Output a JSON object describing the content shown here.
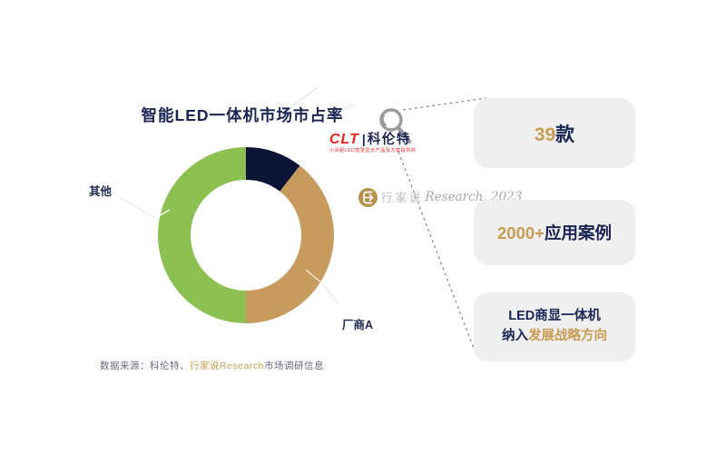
{
  "chart_data": {
    "type": "pie",
    "subtype": "donut",
    "title": "智能LED一体机市场市占率",
    "legend": "none",
    "labels_shown": [
      "其他",
      "厂商A"
    ],
    "segments": [
      {
        "label": "",
        "value": 10.5,
        "color": "#0c1436"
      },
      {
        "label": "厂商A",
        "value": 39.5,
        "color": "#c69b5d"
      },
      {
        "label": "其他",
        "value": 50,
        "color": "#8cc152"
      }
    ]
  },
  "logo": {
    "clt": "CLT",
    "divider": "|",
    "name": "科伦特",
    "tagline": "小间距LED智慧显示产品及方案提供商",
    "clt_color": "#e8221c"
  },
  "watermark": {
    "brand": "行家说",
    "rest": "Research, 2023"
  },
  "callouts": {
    "box1": {
      "highlight": "39",
      "rest": "款"
    },
    "box2": {
      "highlight": "2000+",
      "rest": "应用案例"
    },
    "box3": {
      "line1": "LED商显一体机",
      "line2_prefix": "纳入",
      "line2_highlight": "发展战略方向"
    }
  },
  "source": {
    "prefix": "数据来源：科伦特、",
    "highlight": "行家说Research",
    "suffix": "市场调研信息"
  },
  "icons": {
    "magnifier": "search-icon",
    "watermark_badge": "chat-bubble-icon"
  },
  "colors": {
    "navy_text": "#1a2553",
    "gold_text": "#c79c52",
    "green_slice": "#8cc152",
    "gold_slice": "#c69b5d",
    "navy_slice": "#0c1436",
    "box_bg": "#efefef",
    "dashed_line": "#909090"
  }
}
